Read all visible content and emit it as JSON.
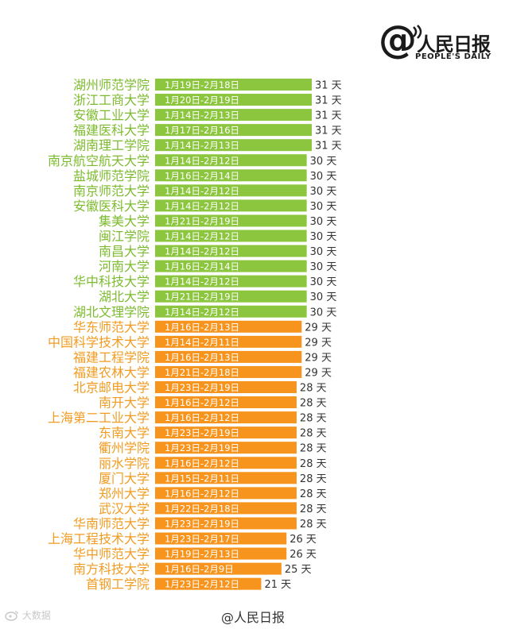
{
  "logo": {
    "at_symbol": "@",
    "cn_text": "人民日报",
    "en_text": "PEOPLE'S DAILY"
  },
  "watermark": {
    "brand": "大数据"
  },
  "source": "@人民日报",
  "colors": {
    "green": "#8cc63f",
    "orange": "#f7941d",
    "label_green": "#7dbb2e",
    "label_orange": "#f29b21"
  },
  "chart_data": {
    "type": "bar",
    "orientation": "horizontal",
    "unit_suffix": "天",
    "categories": [
      "湖州师范学院",
      "浙江工商大学",
      "安徽工业大学",
      "福建医科大学",
      "湖南理工学院",
      "南京航空航天大学",
      "盐城师范学院",
      "南京师范大学",
      "安徽医科大学",
      "集美大学",
      "闽江学院",
      "南昌大学",
      "河南大学",
      "华中科技大学",
      "湖北大学",
      "湖北文理学院",
      "华东师范大学",
      "中国科学技术大学",
      "福建工程学院",
      "福建农林大学",
      "北京邮电大学",
      "南开大学",
      "上海第二工业大学",
      "东南大学",
      "衢州学院",
      "丽水学院",
      "厦门大学",
      "郑州大学",
      "武汉大学",
      "华南师范大学",
      "上海工程技术大学",
      "华中师范大学",
      "南方科技大学",
      "首钢工学院"
    ],
    "date_ranges": [
      "1月19日-2月18日",
      "1月20日-2月19日",
      "1月14日-2月13日",
      "1月17日-2月16日",
      "1月14日-2月13日",
      "1月14日-2月12日",
      "1月16日-2月14日",
      "1月14日-2月12日",
      "1月14日-2月12日",
      "1月21日-2月19日",
      "1月14日-2月12日",
      "1月14日-2月12日",
      "1月16日-2月14日",
      "1月14日-2月12日",
      "1月21日-2月19日",
      "1月14日-2月12日",
      "1月16日-2月13日",
      "1月14日-2月11日",
      "1月16日-2月13日",
      "1月21日-2月18日",
      "1月23日-2月19日",
      "1月16日-2月12日",
      "1月16日-2月12日",
      "1月23日-2月19日",
      "1月23日-2月19日",
      "1月16日-2月12日",
      "1月15日-2月11日",
      "1月16日-2月12日",
      "1月22日-2月18日",
      "1月23日-2月19日",
      "1月23日-2月17日",
      "1月19日-2月13日",
      "1月16日-2月9日",
      "1月23日-2月12日"
    ],
    "values": [
      31,
      31,
      31,
      31,
      31,
      30,
      30,
      30,
      30,
      30,
      30,
      30,
      30,
      30,
      30,
      30,
      29,
      29,
      29,
      29,
      28,
      28,
      28,
      28,
      28,
      28,
      28,
      28,
      28,
      28,
      26,
      26,
      25,
      21
    ],
    "xlim": [
      0,
      31
    ]
  }
}
